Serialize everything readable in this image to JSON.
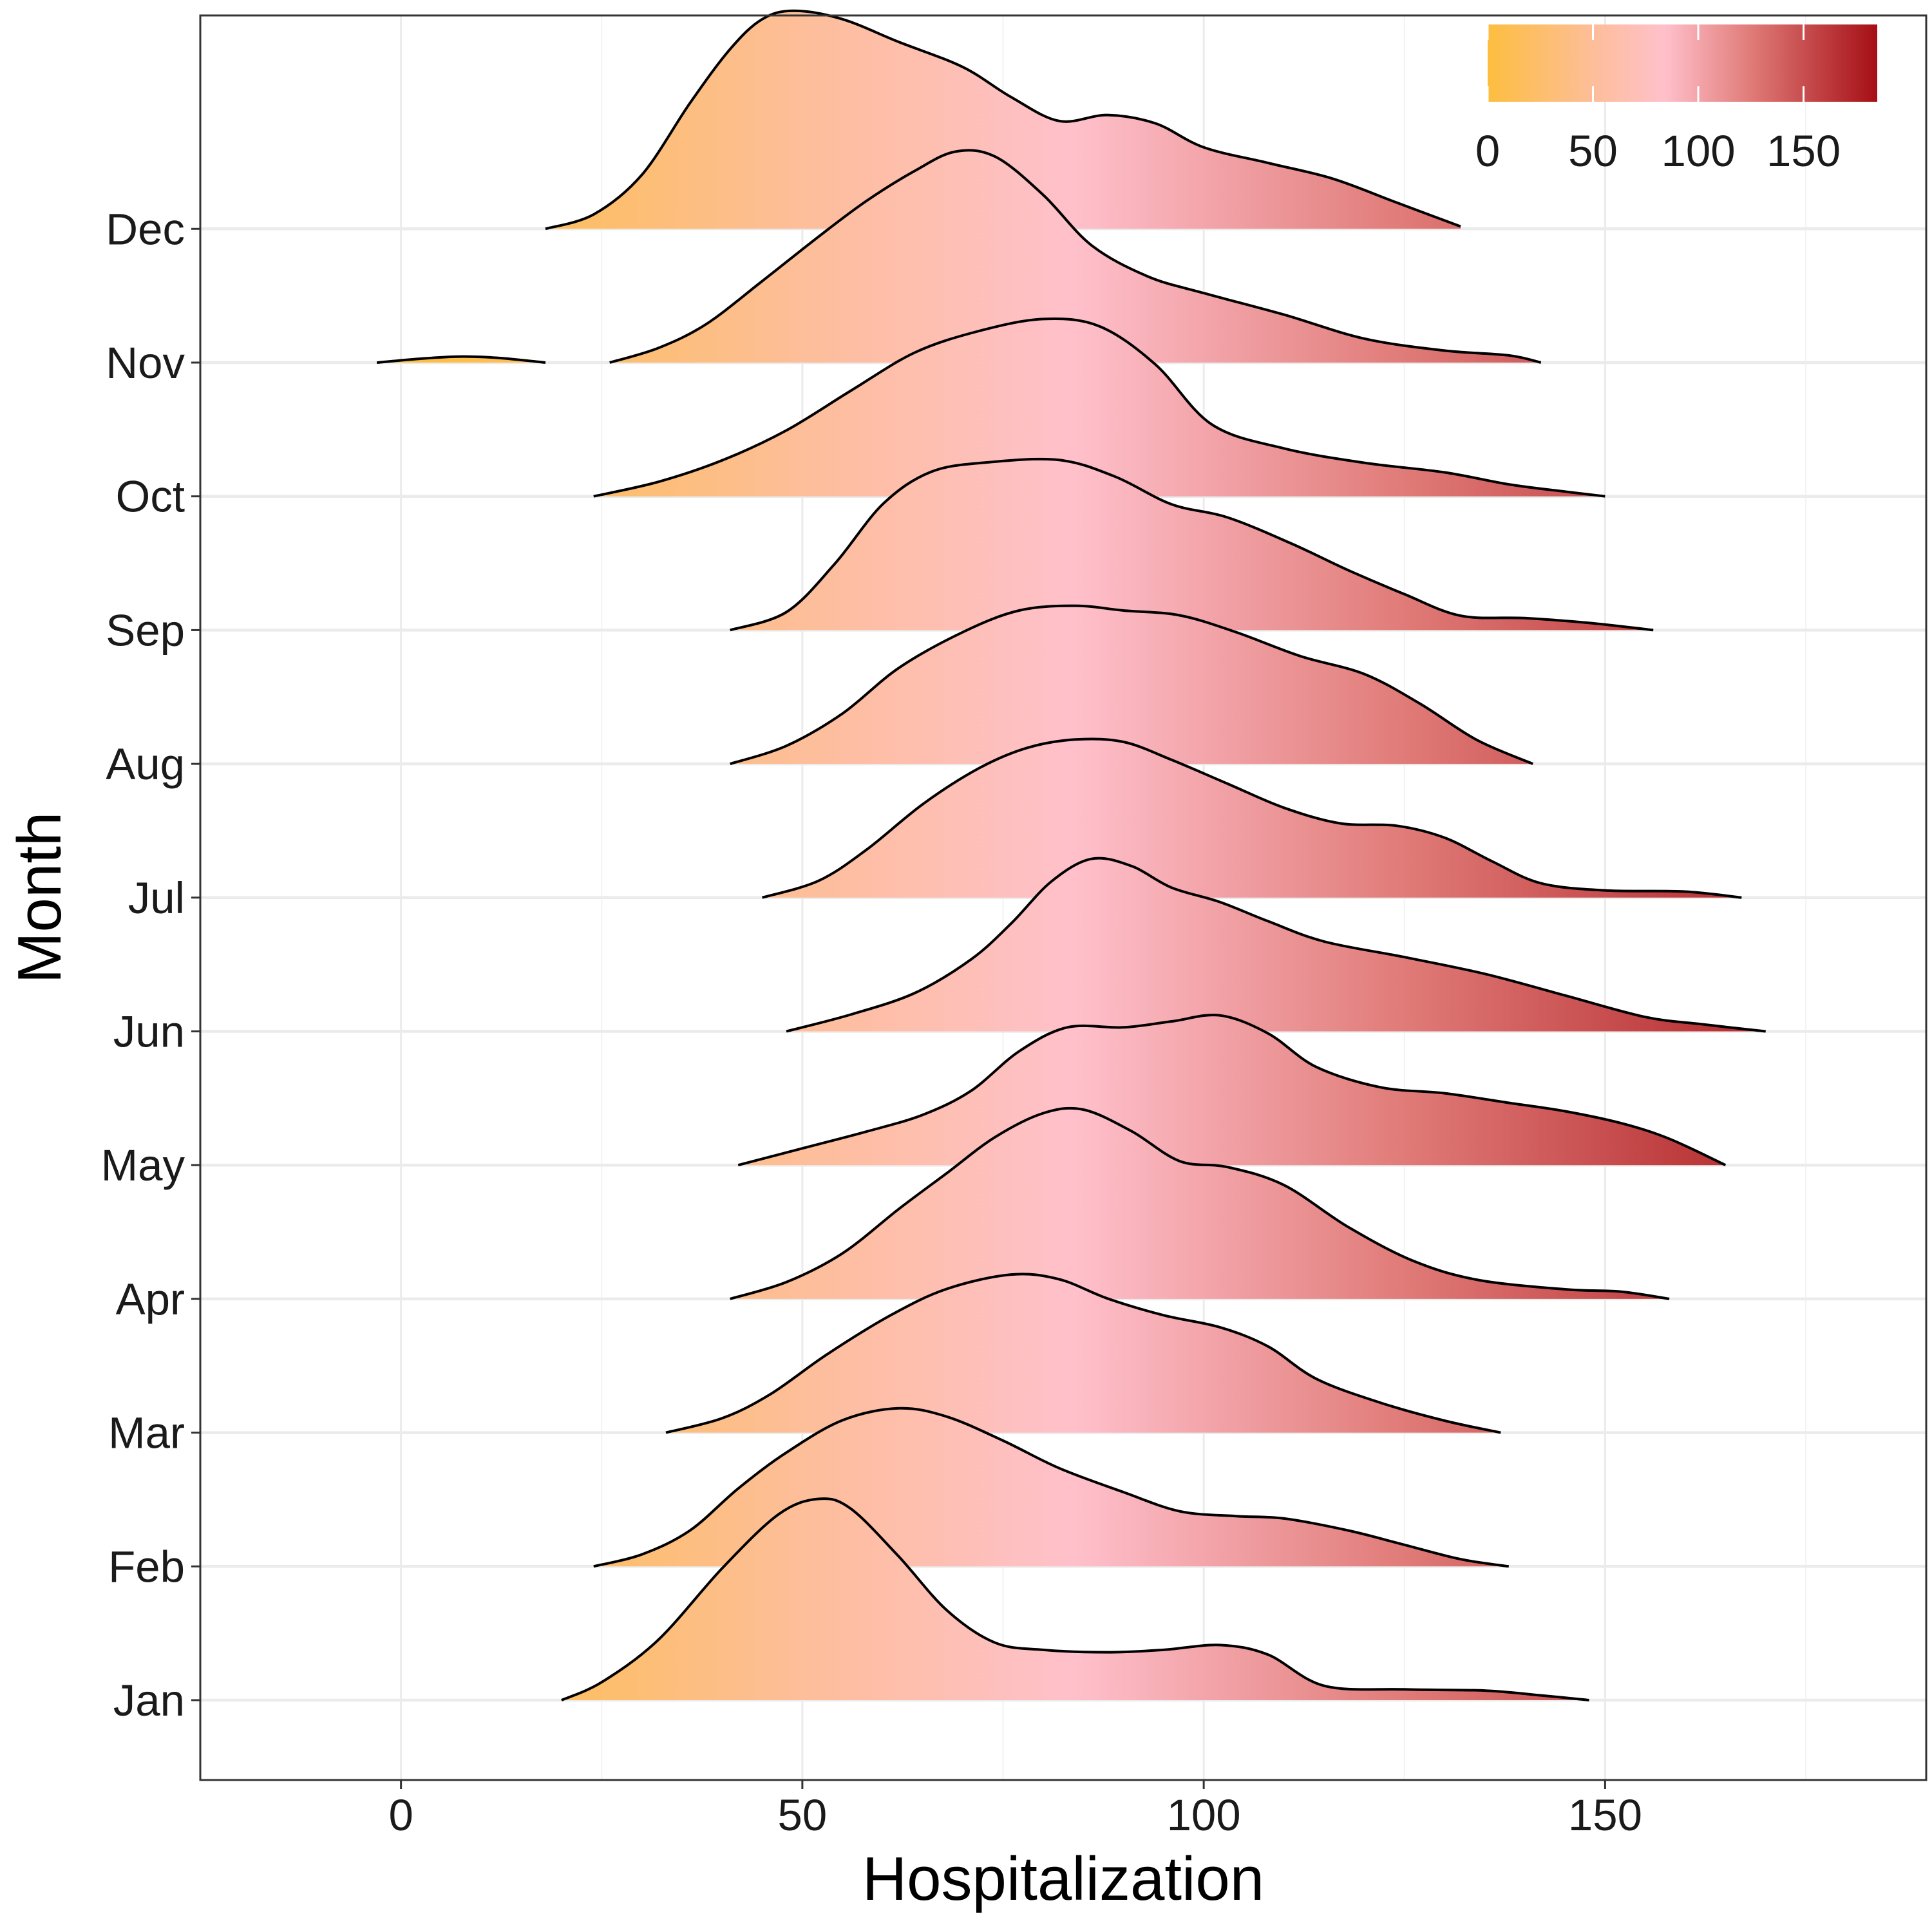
{
  "chart_data": {
    "type": "ridgeline",
    "xlabel": "Hospitalization",
    "ylabel": "Month",
    "xlim": [
      -25,
      190
    ],
    "x_ticks": [
      0,
      50,
      100,
      150
    ],
    "x_tick_labels": [
      "0",
      "50",
      "100",
      "150"
    ],
    "categories": [
      "Jan",
      "Feb",
      "Mar",
      "Apr",
      "May",
      "Jun",
      "Jul",
      "Aug",
      "Sep",
      "Oct",
      "Nov",
      "Dec"
    ],
    "grid": true,
    "legend": {
      "position": "top-right",
      "ticks": [
        0,
        50,
        100,
        150
      ],
      "tick_labels": [
        "0",
        "50",
        "100",
        "150"
      ],
      "range": [
        0,
        185
      ]
    },
    "colorscale": [
      {
        "value": 0,
        "color": "#FDBE3F"
      },
      {
        "value": 50,
        "color": "#FDBE9A"
      },
      {
        "value": 84,
        "color": "#FFC0CB"
      },
      {
        "value": 125,
        "color": "#E07B78"
      },
      {
        "value": 185,
        "color": "#A50F15"
      }
    ],
    "series": [
      {
        "name": "Jan",
        "density": [
          [
            20,
            0
          ],
          [
            25,
            0.15
          ],
          [
            32,
            0.5
          ],
          [
            40,
            1.1
          ],
          [
            47,
            1.55
          ],
          [
            52,
            1.68
          ],
          [
            56,
            1.6
          ],
          [
            62,
            1.2
          ],
          [
            68,
            0.75
          ],
          [
            74,
            0.48
          ],
          [
            80,
            0.42
          ],
          [
            88,
            0.4
          ],
          [
            95,
            0.42
          ],
          [
            102,
            0.46
          ],
          [
            108,
            0.38
          ],
          [
            115,
            0.12
          ],
          [
            125,
            0.09
          ],
          [
            135,
            0.08
          ],
          [
            142,
            0.04
          ],
          [
            148,
            0
          ]
        ]
      },
      {
        "name": "Feb",
        "density": [
          [
            24,
            0
          ],
          [
            30,
            0.1
          ],
          [
            36,
            0.3
          ],
          [
            42,
            0.65
          ],
          [
            48,
            0.95
          ],
          [
            55,
            1.22
          ],
          [
            62,
            1.32
          ],
          [
            68,
            1.25
          ],
          [
            75,
            1.05
          ],
          [
            82,
            0.82
          ],
          [
            90,
            0.62
          ],
          [
            97,
            0.46
          ],
          [
            104,
            0.42
          ],
          [
            110,
            0.4
          ],
          [
            118,
            0.3
          ],
          [
            125,
            0.18
          ],
          [
            132,
            0.06
          ],
          [
            138,
            0
          ]
        ]
      },
      {
        "name": "Mar",
        "density": [
          [
            33,
            0
          ],
          [
            40,
            0.12
          ],
          [
            46,
            0.32
          ],
          [
            53,
            0.65
          ],
          [
            61,
            0.98
          ],
          [
            68,
            1.2
          ],
          [
            76,
            1.32
          ],
          [
            82,
            1.28
          ],
          [
            88,
            1.12
          ],
          [
            95,
            0.98
          ],
          [
            102,
            0.88
          ],
          [
            108,
            0.72
          ],
          [
            114,
            0.45
          ],
          [
            122,
            0.25
          ],
          [
            130,
            0.1
          ],
          [
            137,
            0
          ]
        ]
      },
      {
        "name": "Apr",
        "density": [
          [
            41,
            0
          ],
          [
            48,
            0.14
          ],
          [
            55,
            0.38
          ],
          [
            62,
            0.75
          ],
          [
            68,
            1.05
          ],
          [
            74,
            1.35
          ],
          [
            80,
            1.55
          ],
          [
            85,
            1.58
          ],
          [
            91,
            1.4
          ],
          [
            97,
            1.15
          ],
          [
            103,
            1.1
          ],
          [
            110,
            0.95
          ],
          [
            118,
            0.6
          ],
          [
            126,
            0.32
          ],
          [
            134,
            0.16
          ],
          [
            145,
            0.08
          ],
          [
            152,
            0.06
          ],
          [
            158,
            0
          ]
        ]
      },
      {
        "name": "May",
        "density": [
          [
            42,
            0
          ],
          [
            50,
            0.14
          ],
          [
            58,
            0.28
          ],
          [
            65,
            0.42
          ],
          [
            71,
            0.62
          ],
          [
            77,
            0.95
          ],
          [
            83,
            1.15
          ],
          [
            90,
            1.15
          ],
          [
            96,
            1.2
          ],
          [
            102,
            1.25
          ],
          [
            108,
            1.1
          ],
          [
            114,
            0.82
          ],
          [
            122,
            0.65
          ],
          [
            130,
            0.6
          ],
          [
            138,
            0.52
          ],
          [
            145,
            0.45
          ],
          [
            152,
            0.35
          ],
          [
            158,
            0.22
          ],
          [
            165,
            0
          ]
        ]
      },
      {
        "name": "Jun",
        "density": [
          [
            48,
            0
          ],
          [
            56,
            0.14
          ],
          [
            64,
            0.32
          ],
          [
            71,
            0.6
          ],
          [
            76,
            0.9
          ],
          [
            81,
            1.25
          ],
          [
            86,
            1.44
          ],
          [
            91,
            1.38
          ],
          [
            96,
            1.2
          ],
          [
            102,
            1.08
          ],
          [
            108,
            0.92
          ],
          [
            115,
            0.75
          ],
          [
            125,
            0.62
          ],
          [
            135,
            0.48
          ],
          [
            145,
            0.3
          ],
          [
            155,
            0.12
          ],
          [
            162,
            0.06
          ],
          [
            170,
            0
          ]
        ]
      },
      {
        "name": "Jul",
        "density": [
          [
            45,
            0
          ],
          [
            52,
            0.14
          ],
          [
            58,
            0.4
          ],
          [
            65,
            0.78
          ],
          [
            72,
            1.08
          ],
          [
            78,
            1.25
          ],
          [
            84,
            1.32
          ],
          [
            90,
            1.3
          ],
          [
            96,
            1.15
          ],
          [
            103,
            0.95
          ],
          [
            110,
            0.75
          ],
          [
            117,
            0.62
          ],
          [
            124,
            0.6
          ],
          [
            130,
            0.5
          ],
          [
            136,
            0.3
          ],
          [
            142,
            0.12
          ],
          [
            150,
            0.06
          ],
          [
            160,
            0.05
          ],
          [
            167,
            0
          ]
        ]
      },
      {
        "name": "Aug",
        "density": [
          [
            41,
            0
          ],
          [
            48,
            0.15
          ],
          [
            55,
            0.42
          ],
          [
            62,
            0.8
          ],
          [
            70,
            1.1
          ],
          [
            77,
            1.28
          ],
          [
            84,
            1.32
          ],
          [
            90,
            1.28
          ],
          [
            97,
            1.24
          ],
          [
            104,
            1.1
          ],
          [
            112,
            0.9
          ],
          [
            120,
            0.75
          ],
          [
            127,
            0.5
          ],
          [
            134,
            0.2
          ],
          [
            141,
            0
          ]
        ]
      },
      {
        "name": "Sep",
        "density": [
          [
            41,
            0
          ],
          [
            48,
            0.15
          ],
          [
            54,
            0.55
          ],
          [
            60,
            1.05
          ],
          [
            66,
            1.32
          ],
          [
            73,
            1.4
          ],
          [
            82,
            1.42
          ],
          [
            89,
            1.28
          ],
          [
            96,
            1.05
          ],
          [
            103,
            0.94
          ],
          [
            111,
            0.72
          ],
          [
            118,
            0.5
          ],
          [
            125,
            0.3
          ],
          [
            132,
            0.12
          ],
          [
            140,
            0.1
          ],
          [
            148,
            0.06
          ],
          [
            156,
            0
          ]
        ]
      },
      {
        "name": "Oct",
        "density": [
          [
            24,
            0
          ],
          [
            32,
            0.12
          ],
          [
            40,
            0.3
          ],
          [
            48,
            0.55
          ],
          [
            56,
            0.88
          ],
          [
            64,
            1.2
          ],
          [
            72,
            1.38
          ],
          [
            80,
            1.48
          ],
          [
            87,
            1.42
          ],
          [
            94,
            1.1
          ],
          [
            101,
            0.6
          ],
          [
            110,
            0.4
          ],
          [
            120,
            0.28
          ],
          [
            130,
            0.2
          ],
          [
            138,
            0.1
          ],
          [
            145,
            0.04
          ],
          [
            150,
            0
          ]
        ]
      },
      {
        "name": "Nov",
        "density": [
          [
            26,
            0
          ],
          [
            32,
            0.12
          ],
          [
            38,
            0.32
          ],
          [
            45,
            0.68
          ],
          [
            52,
            1.05
          ],
          [
            58,
            1.35
          ],
          [
            64,
            1.6
          ],
          [
            69,
            1.76
          ],
          [
            74,
            1.72
          ],
          [
            80,
            1.4
          ],
          [
            86,
            0.98
          ],
          [
            93,
            0.72
          ],
          [
            100,
            0.58
          ],
          [
            110,
            0.4
          ],
          [
            120,
            0.2
          ],
          [
            130,
            0.1
          ],
          [
            138,
            0.06
          ],
          [
            142,
            0
          ]
        ]
      },
      {
        "name": "Nov",
        "density": [
          [
            -3,
            0
          ],
          [
            2,
            0.03
          ],
          [
            7,
            0.05
          ],
          [
            12,
            0.04
          ],
          [
            18,
            0
          ]
        ]
      },
      {
        "name": "Dec",
        "density": [
          [
            18,
            0
          ],
          [
            24,
            0.12
          ],
          [
            30,
            0.45
          ],
          [
            36,
            1.05
          ],
          [
            41,
            1.5
          ],
          [
            45,
            1.75
          ],
          [
            49,
            1.82
          ],
          [
            55,
            1.75
          ],
          [
            62,
            1.56
          ],
          [
            70,
            1.35
          ],
          [
            76,
            1.1
          ],
          [
            82,
            0.9
          ],
          [
            88,
            0.95
          ],
          [
            94,
            0.88
          ],
          [
            100,
            0.68
          ],
          [
            108,
            0.55
          ],
          [
            116,
            0.42
          ],
          [
            124,
            0.22
          ],
          [
            132,
            0.02
          ]
        ]
      }
    ]
  }
}
